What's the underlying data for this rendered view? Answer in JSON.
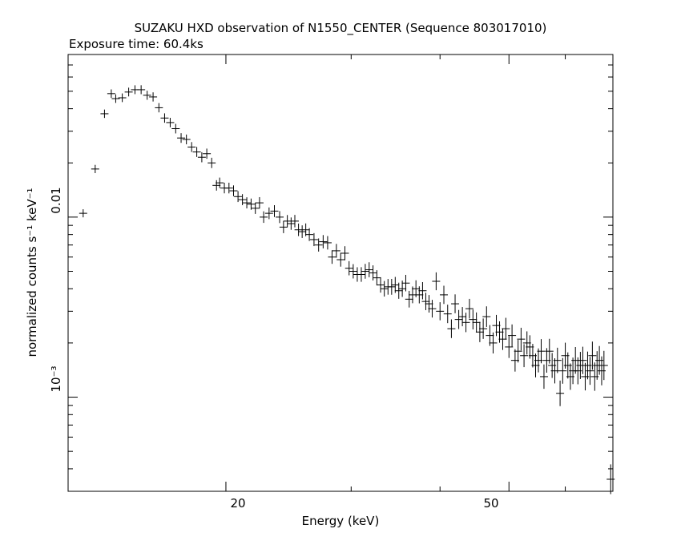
{
  "chart_data": {
    "type": "scatter",
    "title": "SUZAKU HXD observation of N1550_CENTER (Sequence 803017010)",
    "subtitle": "Exposure time: 60.4ks",
    "xlabel": "Energy (keV)",
    "ylabel": "normalized counts s⁻¹ keV⁻¹",
    "x_scale": "log",
    "y_scale": "log",
    "xlim": [
      12.0,
      70.0
    ],
    "ylim": [
      0.0003,
      0.08
    ],
    "x_ticklabels": [
      "20",
      "50"
    ],
    "y_ticklabels": [
      "0.01",
      "10⁻³"
    ],
    "grid": false,
    "legend": "none",
    "color": "#000000",
    "series": [
      {
        "x": [
          12.6,
          13.1,
          13.5,
          13.8,
          14.0,
          14.3,
          14.6,
          14.9,
          15.2,
          15.5,
          15.8,
          16.1,
          16.4,
          16.7,
          17.0,
          17.3,
          17.6,
          17.9,
          18.2,
          18.5,
          18.8,
          19.1,
          19.4,
          19.6,
          19.9,
          20.2,
          20.5,
          20.8,
          21.1,
          21.4,
          21.7,
          22.0,
          22.3,
          22.6,
          23.0,
          23.4,
          23.8,
          24.1,
          24.4,
          24.7,
          25.0,
          25.3,
          25.6,
          25.9,
          26.2,
          26.6,
          27.0,
          27.4,
          27.8,
          28.2,
          28.6,
          29.0,
          29.4,
          29.8,
          30.2,
          30.6,
          31.0,
          31.4,
          31.8,
          32.2,
          32.6,
          33.0,
          33.4,
          33.8,
          34.2,
          34.6,
          35.0,
          35.4,
          35.8,
          36.2,
          36.6,
          37.0,
          37.4,
          37.8,
          38.2,
          38.6,
          39.0,
          39.5,
          40.0,
          40.5,
          41.0,
          41.5,
          42.0,
          42.5,
          43.0,
          43.5,
          44.0,
          44.5,
          45.0,
          45.5,
          46.0,
          46.5,
          47.0,
          47.5,
          48.0,
          48.5,
          49.0,
          49.5,
          50.0,
          50.5,
          51.0,
          51.5,
          52.0,
          52.5,
          53.0,
          53.5,
          54.0,
          54.5,
          55.0,
          55.5,
          56.0,
          56.5,
          57.0,
          57.5,
          58.0,
          58.5,
          59.0,
          59.5,
          60.0,
          60.5,
          61.0,
          61.5,
          62.0,
          62.5,
          63.0,
          63.5,
          64.0,
          64.5,
          65.0,
          65.5,
          66.0,
          66.5,
          67.0,
          67.5,
          68.0,
          69.5
        ],
        "y": [
          0.0105,
          0.0185,
          0.0375,
          0.0485,
          0.0455,
          0.046,
          0.0495,
          0.051,
          0.051,
          0.0475,
          0.0465,
          0.0405,
          0.0355,
          0.0335,
          0.031,
          0.0275,
          0.027,
          0.0245,
          0.023,
          0.0215,
          0.0225,
          0.02,
          0.015,
          0.0155,
          0.0145,
          0.0145,
          0.014,
          0.013,
          0.0125,
          0.012,
          0.0118,
          0.0112,
          0.012,
          0.01,
          0.0105,
          0.0108,
          0.01,
          0.0088,
          0.0095,
          0.0092,
          0.0095,
          0.0085,
          0.0083,
          0.0085,
          0.008,
          0.0075,
          0.007,
          0.0073,
          0.0072,
          0.006,
          0.0065,
          0.0058,
          0.0063,
          0.0052,
          0.005,
          0.0048,
          0.0048,
          0.005,
          0.0051,
          0.0049,
          0.0046,
          0.0042,
          0.004,
          0.0041,
          0.0041,
          0.0042,
          0.0039,
          0.004,
          0.0043,
          0.0035,
          0.0037,
          0.004,
          0.0037,
          0.0039,
          0.0034,
          0.0033,
          0.0031,
          0.0044,
          0.003,
          0.0037,
          0.0029,
          0.0024,
          0.0033,
          0.0027,
          0.0028,
          0.0026,
          0.0031,
          0.0027,
          0.0026,
          0.0023,
          0.0024,
          0.0028,
          0.0022,
          0.002,
          0.0025,
          0.0023,
          0.0021,
          0.0024,
          0.0019,
          0.0022,
          0.0016,
          0.0018,
          0.0021,
          0.0017,
          0.002,
          0.0019,
          0.0017,
          0.0015,
          0.0016,
          0.0018,
          0.0013,
          0.0016,
          0.0018,
          0.0015,
          0.0014,
          0.0016,
          0.00105,
          0.0014,
          0.0017,
          0.0015,
          0.0013,
          0.0014,
          0.0016,
          0.0014,
          0.0015,
          0.0016,
          0.0013,
          0.0015,
          0.0014,
          0.0017,
          0.0013,
          0.0015,
          0.0016,
          0.0014,
          0.0015,
          0.00035
        ]
      }
    ]
  }
}
